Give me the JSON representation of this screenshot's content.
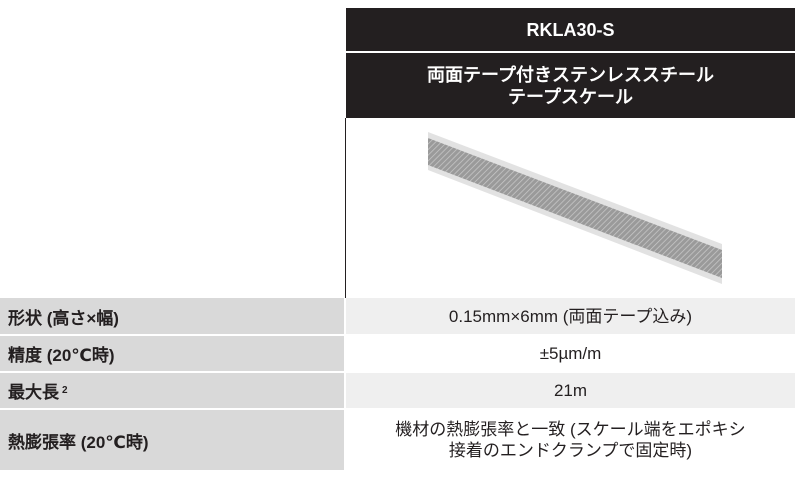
{
  "header": {
    "product": "RKLA30-S",
    "description": "両面テープ付きステンレススチール\nテープスケール"
  },
  "table": {
    "rows": [
      {
        "label": "形状 (高さ×幅)",
        "value": "0.15mm×6mm (両面テープ込み)"
      },
      {
        "label": "精度 (20℃時)",
        "value": "±5µm/m"
      },
      {
        "label": "最大長",
        "note": "2",
        "value": "21m"
      },
      {
        "label": "熱膨張率 (20℃時)",
        "value": "機材の熱膨張率と一致 (スケール端をエポキシ\n接着のエンドクランプで固定時)"
      }
    ]
  }
}
